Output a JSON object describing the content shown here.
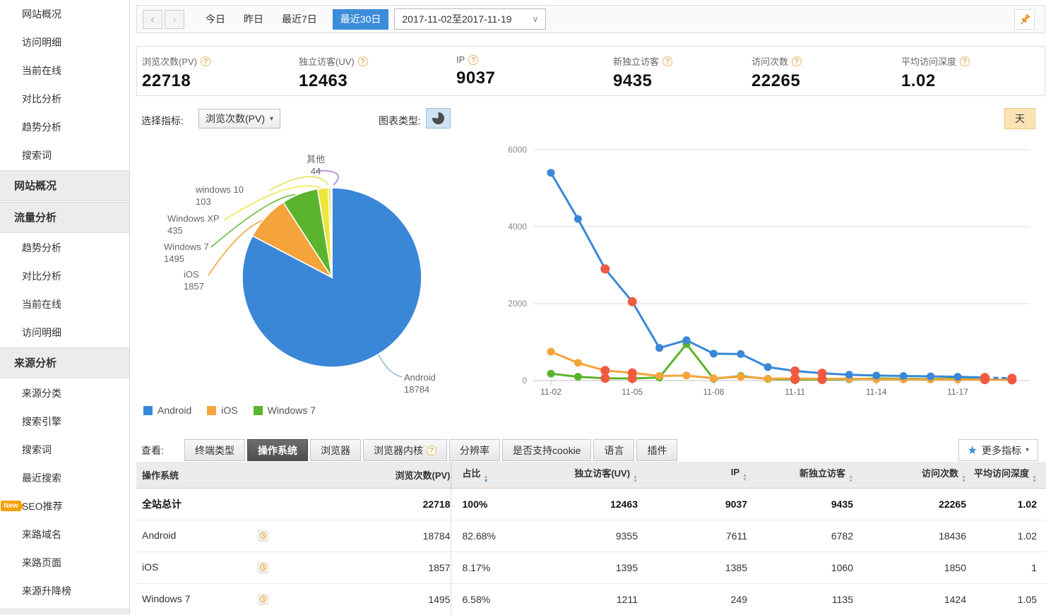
{
  "icons": {
    "chevron_left": "‹",
    "chevron_right": "›",
    "dropdown_caret": "▾",
    "select_caret": "∨",
    "help": "?",
    "star": "★",
    "sort_up": "▲",
    "sort_down": "▼"
  },
  "colors": {
    "accent_blue": "#3c8dd9",
    "weekend_red": "#f05b40",
    "day_button_bg": "#fbe3b3",
    "tab_active_bg": "#4d4d4d"
  },
  "sidebar": {
    "items": [
      {
        "type": "item",
        "label": "网站概况"
      },
      {
        "type": "item",
        "label": "访问明细"
      },
      {
        "type": "item",
        "label": "当前在线"
      },
      {
        "type": "item",
        "label": "对比分析"
      },
      {
        "type": "item",
        "label": "趋势分析"
      },
      {
        "type": "item",
        "label": "搜索词"
      },
      {
        "type": "section",
        "label": "网站概况"
      },
      {
        "type": "section",
        "label": "流量分析"
      },
      {
        "type": "item",
        "label": "趋势分析"
      },
      {
        "type": "item",
        "label": "对比分析"
      },
      {
        "type": "item",
        "label": "当前在线"
      },
      {
        "type": "item",
        "label": "访问明细"
      },
      {
        "type": "section",
        "label": "来源分析"
      },
      {
        "type": "item",
        "label": "来源分类"
      },
      {
        "type": "item",
        "label": "搜索引擎"
      },
      {
        "type": "item",
        "label": "搜索词"
      },
      {
        "type": "item",
        "label": "最近搜索"
      },
      {
        "type": "item",
        "label": "SEO推荐",
        "badge": "New"
      },
      {
        "type": "item",
        "label": "来路域名"
      },
      {
        "type": "item",
        "label": "来路页面"
      },
      {
        "type": "item",
        "label": "来源升降榜"
      }
    ]
  },
  "topbar": {
    "quick_ranges": [
      "今日",
      "昨日",
      "最近7日"
    ],
    "active_range": "最近30日",
    "date_range": "2017-11-02至2017-11-19"
  },
  "metrics": [
    {
      "label": "浏览次数(PV)",
      "value": "22718"
    },
    {
      "label": "独立访客(UV)",
      "value": "12463"
    },
    {
      "label": "IP",
      "value": "9037"
    },
    {
      "label": "新独立访客",
      "value": "9435"
    },
    {
      "label": "访问次数",
      "value": "22265"
    },
    {
      "label": "平均访问深度",
      "value": "1.02"
    }
  ],
  "controls": {
    "metric_select_label": "选择指标:",
    "metric_select_value": "浏览次数(PV)",
    "chart_type_label": "图表类型:",
    "granularity": "天"
  },
  "chart_data": [
    {
      "type": "pie",
      "title": "操作系统分布(浏览次数PV)",
      "slices": [
        {
          "name": "Android",
          "value": 18784,
          "color": "#3a87d8"
        },
        {
          "name": "iOS",
          "value": 1857,
          "color": "#f5a43c"
        },
        {
          "name": "Windows 7",
          "value": 1495,
          "color": "#5cb32d"
        },
        {
          "name": "Windows XP",
          "value": 435,
          "color": "#ece63b"
        },
        {
          "name": "windows 10",
          "value": 103,
          "color": "#dfe24a"
        },
        {
          "name": "其他",
          "value": 44,
          "color": "#a878d8"
        }
      ],
      "legend": [
        "Android",
        "iOS",
        "Windows 7"
      ],
      "legend_position": "bottom-left"
    },
    {
      "type": "line",
      "x": [
        "11-02",
        "11-03",
        "11-04",
        "11-05",
        "11-06",
        "11-07",
        "11-08",
        "11-09",
        "11-10",
        "11-11",
        "11-12",
        "11-13",
        "11-14",
        "11-15",
        "11-16",
        "11-17",
        "11-18",
        "11-19"
      ],
      "x_tick_labels": [
        "11-02",
        "11-05",
        "11-08",
        "11-11",
        "11-14",
        "11-17"
      ],
      "ylim": [
        0,
        6000
      ],
      "yticks": [
        0,
        2000,
        4000,
        6000
      ],
      "grid": true,
      "weekend_indices": [
        2,
        3,
        9,
        10,
        16,
        17
      ],
      "weekend_point_color": "#f05b40",
      "series": [
        {
          "name": "Android",
          "color": "#3a87d8",
          "dash_last_segment": true,
          "values": [
            5400,
            4200,
            2900,
            2050,
            850,
            1050,
            700,
            690,
            350,
            250,
            190,
            150,
            130,
            120,
            110,
            100,
            80,
            60
          ]
        },
        {
          "name": "iOS",
          "color": "#f5a43c",
          "dash_last_segment": false,
          "values": [
            750,
            460,
            260,
            200,
            120,
            130,
            60,
            100,
            50,
            55,
            40,
            50,
            35,
            30,
            30,
            28,
            25,
            20
          ]
        },
        {
          "name": "Windows 7",
          "color": "#5cb32d",
          "dash_last_segment": false,
          "values": [
            180,
            100,
            60,
            55,
            80,
            950,
            45,
            120,
            40,
            30,
            28,
            35,
            55,
            45,
            40,
            50,
            28,
            22
          ]
        }
      ]
    }
  ],
  "tabs": {
    "view_label": "查看:",
    "items": [
      "终端类型",
      "操作系统",
      "浏览器",
      "浏览器内核",
      "分辨率",
      "是否支持cookie",
      "语言",
      "插件"
    ],
    "active": "操作系统",
    "more_label": "更多指标"
  },
  "table": {
    "headers": [
      "操作系统",
      "浏览次数(PV)",
      "占比",
      "独立访客(UV)",
      "IP",
      "新独立访客",
      "访问次数",
      "平均访问深度"
    ],
    "sorted_by": "占比",
    "rows": [
      {
        "label": "全站总计",
        "total": true,
        "cells": [
          "22718",
          "100%",
          "12463",
          "9037",
          "9435",
          "22265",
          "1.02"
        ]
      },
      {
        "label": "Android",
        "total": false,
        "cells": [
          "18784",
          "82.68%",
          "9355",
          "7611",
          "6782",
          "18436",
          "1.02"
        ]
      },
      {
        "label": "iOS",
        "total": false,
        "cells": [
          "1857",
          "8.17%",
          "1395",
          "1385",
          "1060",
          "1850",
          "1"
        ]
      },
      {
        "label": "Windows 7",
        "total": false,
        "cells": [
          "1495",
          "6.58%",
          "1211",
          "249",
          "1135",
          "1424",
          "1.05"
        ]
      }
    ]
  }
}
